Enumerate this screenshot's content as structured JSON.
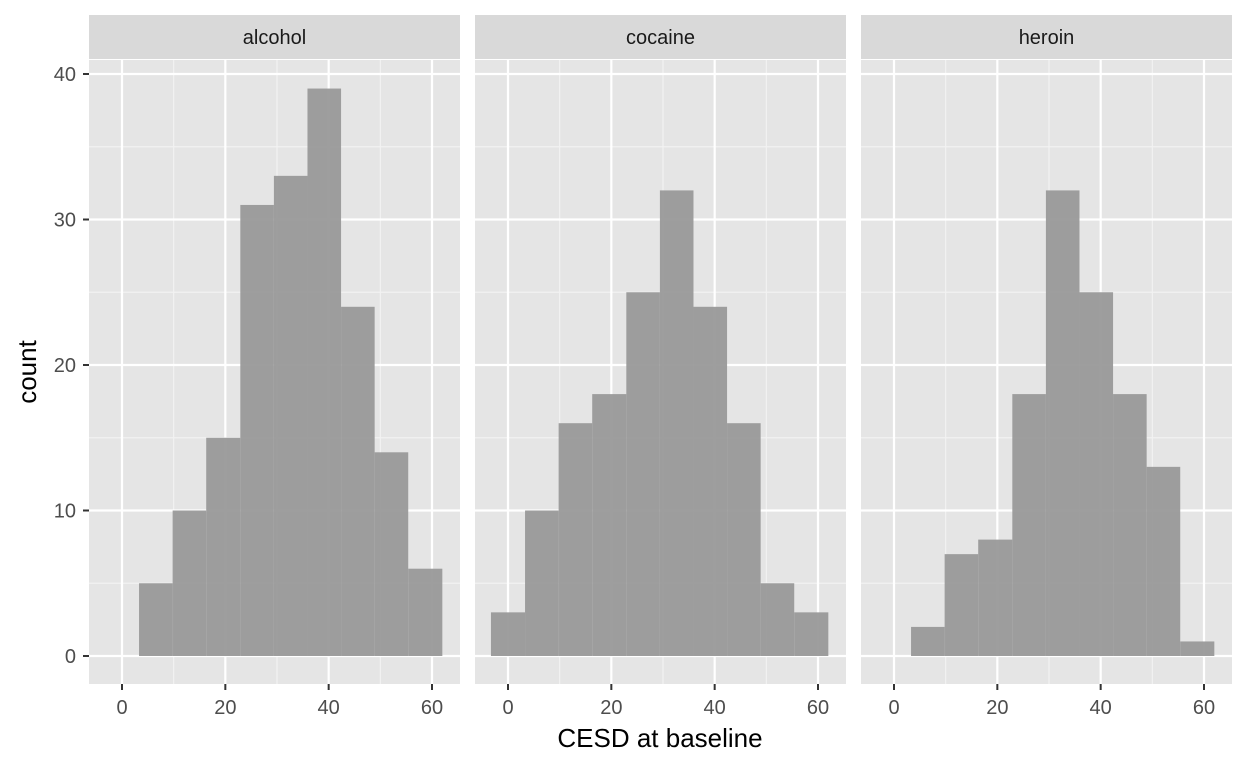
{
  "chart_data": {
    "type": "bar",
    "subtype": "faceted histogram",
    "xlabel": "CESD at baseline",
    "ylabel": "count",
    "xlim": [
      -6.5,
      65
    ],
    "ylim": [
      -2,
      40
    ],
    "x_ticks": [
      0,
      20,
      40,
      60
    ],
    "y_ticks": [
      0,
      10,
      20,
      30,
      40
    ],
    "grid": true,
    "bar_color": "#999999",
    "panel_background": "#e5e5e5",
    "strip_background": "#d9d9d9",
    "facets": [
      {
        "name": "alcohol",
        "bins": [
          {
            "x0": 3.3,
            "x1": 9.8,
            "count": 5
          },
          {
            "x0": 9.8,
            "x1": 16.3,
            "count": 10
          },
          {
            "x0": 16.3,
            "x1": 22.9,
            "count": 15
          },
          {
            "x0": 22.9,
            "x1": 29.4,
            "count": 31
          },
          {
            "x0": 29.4,
            "x1": 35.9,
            "count": 33
          },
          {
            "x0": 35.9,
            "x1": 42.4,
            "count": 39
          },
          {
            "x0": 42.4,
            "x1": 48.9,
            "count": 24
          },
          {
            "x0": 48.9,
            "x1": 55.4,
            "count": 14
          },
          {
            "x0": 55.4,
            "x1": 62,
            "count": 6
          }
        ]
      },
      {
        "name": "cocaine",
        "bins": [
          {
            "x0": -3.3,
            "x1": 3.3,
            "count": 3
          },
          {
            "x0": 3.3,
            "x1": 9.8,
            "count": 10
          },
          {
            "x0": 9.8,
            "x1": 16.3,
            "count": 16
          },
          {
            "x0": 16.3,
            "x1": 22.9,
            "count": 18
          },
          {
            "x0": 22.9,
            "x1": 29.4,
            "count": 25
          },
          {
            "x0": 29.4,
            "x1": 35.9,
            "count": 32
          },
          {
            "x0": 35.9,
            "x1": 42.4,
            "count": 24
          },
          {
            "x0": 42.4,
            "x1": 48.9,
            "count": 16
          },
          {
            "x0": 48.9,
            "x1": 55.4,
            "count": 5
          },
          {
            "x0": 55.4,
            "x1": 62,
            "count": 3
          }
        ]
      },
      {
        "name": "heroin",
        "bins": [
          {
            "x0": 3.3,
            "x1": 9.8,
            "count": 2
          },
          {
            "x0": 9.8,
            "x1": 16.3,
            "count": 7
          },
          {
            "x0": 16.3,
            "x1": 22.9,
            "count": 8
          },
          {
            "x0": 22.9,
            "x1": 29.4,
            "count": 18
          },
          {
            "x0": 29.4,
            "x1": 35.9,
            "count": 32
          },
          {
            "x0": 35.9,
            "x1": 42.4,
            "count": 25
          },
          {
            "x0": 42.4,
            "x1": 48.9,
            "count": 18
          },
          {
            "x0": 48.9,
            "x1": 55.4,
            "count": 13
          },
          {
            "x0": 55.4,
            "x1": 62,
            "count": 1
          }
        ]
      }
    ]
  }
}
